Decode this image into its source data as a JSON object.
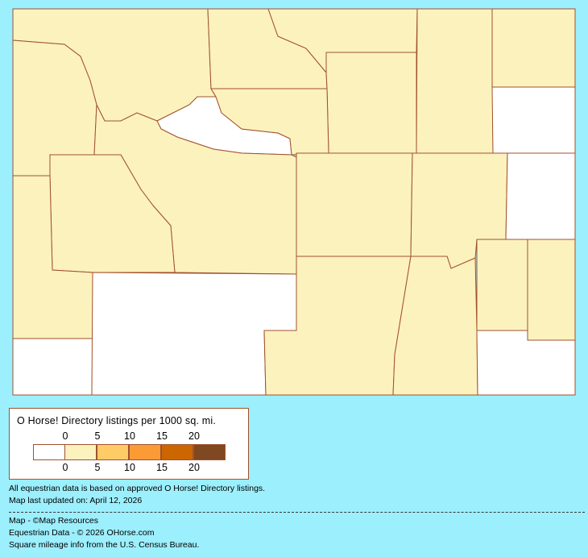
{
  "colors": {
    "background": "#9CEFFC",
    "border": "#A0522D",
    "bins": [
      "#FFFFFF",
      "#FCF2BE",
      "#FDCC66",
      "#FB9B36",
      "#CC6600",
      "#7F4820"
    ]
  },
  "map": {
    "regions": [
      {
        "bin": 1
      },
      {
        "bin": 1
      },
      {
        "bin": 1
      },
      {
        "bin": 1
      },
      {
        "bin": 1
      },
      {
        "bin": 1
      },
      {
        "bin": 0
      },
      {
        "bin": 1
      },
      {
        "bin": 0
      },
      {
        "bin": 1
      },
      {
        "bin": 1
      },
      {
        "bin": 1
      },
      {
        "bin": 1
      },
      {
        "bin": 0
      },
      {
        "bin": 0
      },
      {
        "bin": 1
      },
      {
        "bin": 1
      },
      {
        "bin": 1
      },
      {
        "bin": 0
      },
      {
        "bin": 1
      },
      {
        "bin": 1
      },
      {
        "bin": 1
      },
      {
        "bin": 0
      }
    ]
  },
  "legend": {
    "title": "O Horse! Directory listings per 1000 sq. mi.",
    "top_ticks": [
      "0",
      "5",
      "10",
      "15",
      "20"
    ],
    "bottom_ticks": [
      "0",
      "5",
      "10",
      "15",
      "20"
    ]
  },
  "notes": {
    "line1": "All equestrian data is based on approved O Horse! Directory listings.",
    "line2": "Map last updated on: April 12, 2026"
  },
  "credits": {
    "map": "Map - ©Map Resources",
    "data": "Equestrian Data - © 2026 OHorse.com",
    "census": "Square mileage info from the U.S. Census Bureau."
  }
}
